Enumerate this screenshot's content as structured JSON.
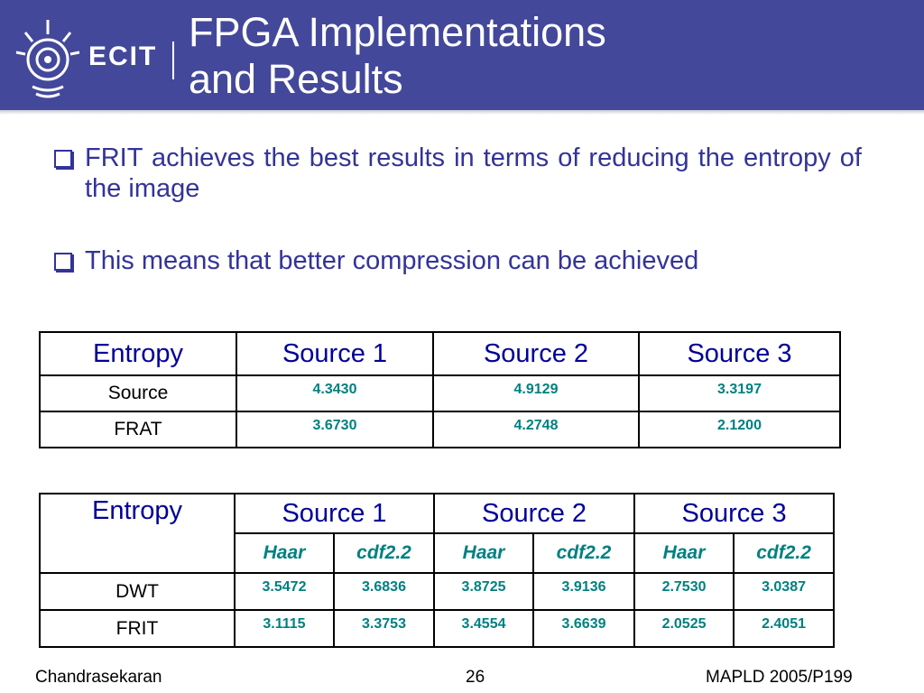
{
  "header": {
    "logo_text": "ECIT",
    "title_line1": "FPGA Implementations",
    "title_line2": "and Results",
    "color": "#44489a"
  },
  "bullets": [
    {
      "text": "FRIT achieves the best results in terms of reducing the entropy of the image"
    },
    {
      "text": "This means that better compression can be achieved"
    }
  ],
  "table1": {
    "headers": [
      "Entropy",
      "Source 1",
      "Source 2",
      "Source 3"
    ],
    "rows": [
      {
        "label": "Source",
        "values": [
          "4.3430",
          "4.9129",
          "3.3197"
        ]
      },
      {
        "label": "FRAT",
        "values": [
          "3.6730",
          "4.2748",
          "2.1200"
        ]
      }
    ]
  },
  "table2": {
    "headers": [
      "Entropy",
      "Source 1",
      "Source 2",
      "Source 3"
    ],
    "subheaders": [
      "Haar",
      "cdf2.2",
      "Haar",
      "cdf2.2",
      "Haar",
      "cdf2.2"
    ],
    "rows": [
      {
        "label": "DWT",
        "values": [
          "3.5472",
          "3.6836",
          "3.8725",
          "3.9136",
          "2.7530",
          "3.0387"
        ]
      },
      {
        "label": "FRIT",
        "values": [
          "3.1115",
          "3.3753",
          "3.4554",
          "3.6639",
          "2.0525",
          "2.4051"
        ]
      }
    ]
  },
  "footer": {
    "author": "Chandrasekaran",
    "page": "26",
    "ref": "MAPLD 2005/P199"
  }
}
